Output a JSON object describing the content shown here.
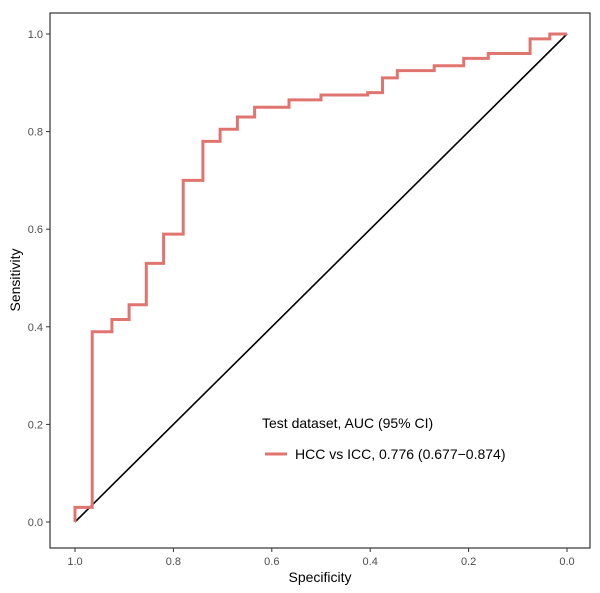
{
  "chart_data": {
    "type": "line",
    "xlabel": "Specificity",
    "ylabel": "Sensitivity",
    "xlim": [
      1.0,
      0.0
    ],
    "ylim": [
      0.0,
      1.0
    ],
    "x_reversed": true,
    "grid": false,
    "xticks": [
      1.0,
      0.8,
      0.6,
      0.4,
      0.2,
      0.0
    ],
    "xtick_labels": [
      "1.0",
      "0.8",
      "0.6",
      "0.4",
      "0.2",
      "0.0"
    ],
    "yticks": [
      0.0,
      0.2,
      0.4,
      0.6,
      0.8,
      1.0
    ],
    "ytick_labels": [
      "0.0",
      "0.2",
      "0.4",
      "0.6",
      "0.8",
      "1.0"
    ],
    "legend": {
      "title": "Test dataset, AUC (95% CI)",
      "placement": "bottom-right"
    },
    "series": [
      {
        "name": "HCC vs ICC, 0.776 (0.677−0.874)",
        "color": "#e07570",
        "specificity": [
          1.0,
          1.0,
          0.965,
          0.965,
          0.925,
          0.925,
          0.89,
          0.89,
          0.855,
          0.855,
          0.82,
          0.82,
          0.78,
          0.78,
          0.74,
          0.74,
          0.705,
          0.705,
          0.67,
          0.67,
          0.635,
          0.635,
          0.565,
          0.565,
          0.5,
          0.5,
          0.405,
          0.405,
          0.375,
          0.375,
          0.345,
          0.345,
          0.27,
          0.27,
          0.21,
          0.21,
          0.16,
          0.16,
          0.075,
          0.075,
          0.035,
          0.035,
          0.0
        ],
        "sensitivity": [
          0.0,
          0.03,
          0.03,
          0.39,
          0.39,
          0.415,
          0.415,
          0.445,
          0.445,
          0.53,
          0.53,
          0.59,
          0.59,
          0.7,
          0.7,
          0.78,
          0.78,
          0.805,
          0.805,
          0.83,
          0.83,
          0.85,
          0.85,
          0.865,
          0.865,
          0.875,
          0.875,
          0.88,
          0.88,
          0.91,
          0.91,
          0.925,
          0.925,
          0.935,
          0.935,
          0.95,
          0.95,
          0.96,
          0.96,
          0.99,
          0.99,
          1.0,
          1.0
        ]
      },
      {
        "name": "",
        "color": "#000000",
        "specificity": [
          1.0,
          0.0
        ],
        "sensitivity": [
          0.0,
          1.0
        ]
      }
    ]
  }
}
